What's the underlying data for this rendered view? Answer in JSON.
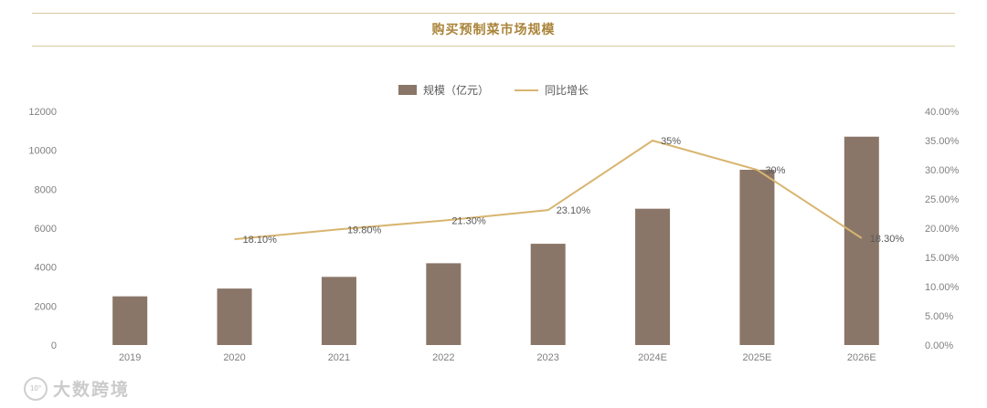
{
  "header": {
    "title": "购买预制菜市场规模"
  },
  "legend": [
    {
      "label": "规模（亿元）",
      "type": "bar"
    },
    {
      "label": "同比增长",
      "type": "line"
    }
  ],
  "colors": {
    "bar": "#8a7668",
    "line": "#d8b56f",
    "title": "#aa8439",
    "rule": "#d9c9a0"
  },
  "watermark": {
    "logo": "10°",
    "text": "大数跨境"
  },
  "chart_data": {
    "type": "bar+line",
    "title": "购买预制菜市场规模",
    "categories": [
      "2019",
      "2020",
      "2021",
      "2022",
      "2023",
      "2024E",
      "2025E",
      "2026E"
    ],
    "series": [
      {
        "name": "规模（亿元）",
        "type": "bar",
        "axis": "left",
        "values": [
          2500,
          2900,
          3500,
          4200,
          5200,
          7000,
          9000,
          10700
        ]
      },
      {
        "name": "同比增长",
        "type": "line",
        "axis": "right",
        "values": [
          null,
          18.1,
          19.8,
          21.3,
          23.1,
          35,
          30,
          18.3
        ],
        "labels": [
          "",
          "18.10%",
          "19.80%",
          "21.30%",
          "23.10%",
          "35%",
          "30%",
          "18.30%"
        ]
      }
    ],
    "left_axis": {
      "min": 0,
      "max": 12000,
      "step": 2000,
      "ticks": [
        "0",
        "2000",
        "4000",
        "6000",
        "8000",
        "10000",
        "12000"
      ]
    },
    "right_axis": {
      "min": 0,
      "max": 40,
      "step": 5,
      "ticks": [
        "0.00%",
        "5.00%",
        "10.00%",
        "15.00%",
        "20.00%",
        "25.00%",
        "30.00%",
        "35.00%",
        "40.00%"
      ]
    },
    "grid": false,
    "legend_position": "top-center"
  }
}
